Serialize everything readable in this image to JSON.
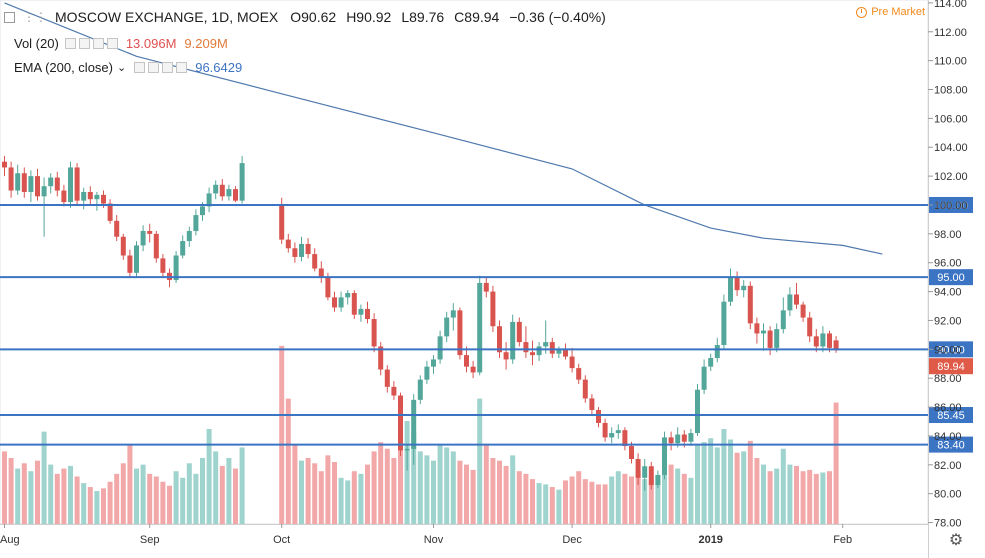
{
  "header": {
    "symbol": "MOSCOW EXCHANGE, 1D, MOEX",
    "ohlc": [
      "O90.62",
      "H90.92",
      "L89.76",
      "C89.94",
      "−0.36 (−0.40%)"
    ],
    "pre_market": "Pre Market"
  },
  "indicators": {
    "vol_label": "Vol (20)",
    "vol_value": "13.096M",
    "vol_ma_value": "9.209M",
    "ema_label": "EMA (200, close)",
    "ema_value": "96.6429"
  },
  "colors": {
    "up": "#53a69a",
    "down": "#d9534f",
    "vol_up": "#9fd3cd",
    "vol_down": "#f2a8a8",
    "level_line": "#3c74c4",
    "ema_line": "#4f79ad",
    "last_price_badge": "#e05a48"
  },
  "chart_data": {
    "type": "candlestick",
    "title": "MOSCOW EXCHANGE, 1D, MOEX",
    "ylim": [
      77.9,
      114.2
    ],
    "y_ticks": [
      78,
      80,
      82,
      84,
      86,
      88,
      90,
      92,
      94,
      96,
      98,
      100,
      102,
      104,
      106,
      108,
      110,
      112,
      114
    ],
    "y_tick_labels": [
      "78.00",
      "80.00",
      "82.00",
      "84.00",
      "86.00",
      "88.00",
      "90.00",
      "92.00",
      "94.00",
      "96.00",
      "98.00",
      "100.00",
      "102.00",
      "104.00",
      "106.00",
      "108.00",
      "110.00",
      "112.00",
      "114.00"
    ],
    "x_tick_labels": [
      {
        "label": "Aug",
        "bar": 0
      },
      {
        "label": "Sep",
        "bar": 22
      },
      {
        "label": "Oct",
        "bar": 42
      },
      {
        "label": "Nov",
        "bar": 65
      },
      {
        "label": "Dec",
        "bar": 86
      },
      {
        "label": "2019",
        "bar": 107
      },
      {
        "label": "Feb",
        "bar": 127
      }
    ],
    "horizontal_levels": [
      {
        "price": 100.0,
        "label": "100.00"
      },
      {
        "price": 95.0,
        "label": "95.00"
      },
      {
        "price": 90.0,
        "label": "90.00"
      },
      {
        "price": 85.45,
        "label": "85.45"
      },
      {
        "price": 83.4,
        "label": "83.40"
      }
    ],
    "last_price": {
      "price": 89.94,
      "label": "89.94"
    },
    "ema": [
      {
        "bar": 0,
        "value": 114.0
      },
      {
        "bar": 20,
        "value": 110.3
      },
      {
        "bar": 42,
        "value": 107.7
      },
      {
        "bar": 65,
        "value": 105.0
      },
      {
        "bar": 86,
        "value": 102.5
      },
      {
        "bar": 97,
        "value": 100.0
      },
      {
        "bar": 107,
        "value": 98.4
      },
      {
        "bar": 115,
        "value": 97.7
      },
      {
        "bar": 127,
        "value": 97.2
      },
      {
        "bar": 133,
        "value": 96.6
      }
    ],
    "candles": [
      {
        "o": 103.0,
        "h": 103.4,
        "l": 102.0,
        "c": 102.6,
        "v": 0.55
      },
      {
        "o": 102.6,
        "h": 103.0,
        "l": 100.5,
        "c": 101.0,
        "v": 0.5
      },
      {
        "o": 101.0,
        "h": 102.8,
        "l": 100.7,
        "c": 102.2,
        "v": 0.42
      },
      {
        "o": 102.2,
        "h": 102.6,
        "l": 100.5,
        "c": 100.9,
        "v": 0.46
      },
      {
        "o": 100.9,
        "h": 102.4,
        "l": 100.2,
        "c": 102.0,
        "v": 0.4
      },
      {
        "o": 102.0,
        "h": 102.5,
        "l": 100.3,
        "c": 100.6,
        "v": 0.48
      },
      {
        "o": 100.6,
        "h": 101.9,
        "l": 97.8,
        "c": 101.3,
        "v": 0.7
      },
      {
        "o": 101.3,
        "h": 102.2,
        "l": 100.8,
        "c": 101.9,
        "v": 0.45
      },
      {
        "o": 101.9,
        "h": 102.3,
        "l": 100.6,
        "c": 101.0,
        "v": 0.38
      },
      {
        "o": 101.0,
        "h": 101.4,
        "l": 99.9,
        "c": 100.2,
        "v": 0.42
      },
      {
        "o": 100.2,
        "h": 103.0,
        "l": 99.8,
        "c": 102.6,
        "v": 0.44
      },
      {
        "o": 102.6,
        "h": 102.9,
        "l": 100.0,
        "c": 100.3,
        "v": 0.36
      },
      {
        "o": 100.3,
        "h": 101.2,
        "l": 99.7,
        "c": 100.9,
        "v": 0.31
      },
      {
        "o": 100.9,
        "h": 101.3,
        "l": 100.0,
        "c": 100.4,
        "v": 0.28
      },
      {
        "o": 100.4,
        "h": 100.9,
        "l": 99.6,
        "c": 100.7,
        "v": 0.25
      },
      {
        "o": 100.7,
        "h": 101.0,
        "l": 99.8,
        "c": 100.1,
        "v": 0.27
      },
      {
        "o": 100.1,
        "h": 100.4,
        "l": 98.7,
        "c": 98.9,
        "v": 0.32
      },
      {
        "o": 98.9,
        "h": 99.3,
        "l": 97.5,
        "c": 97.8,
        "v": 0.38
      },
      {
        "o": 97.8,
        "h": 98.0,
        "l": 96.2,
        "c": 96.5,
        "v": 0.46
      },
      {
        "o": 96.5,
        "h": 96.9,
        "l": 95.0,
        "c": 95.3,
        "v": 0.6
      },
      {
        "o": 95.3,
        "h": 97.5,
        "l": 95.0,
        "c": 97.2,
        "v": 0.42
      },
      {
        "o": 97.2,
        "h": 98.6,
        "l": 96.8,
        "c": 98.2,
        "v": 0.45
      },
      {
        "o": 98.2,
        "h": 98.7,
        "l": 97.4,
        "c": 98.0,
        "v": 0.38
      },
      {
        "o": 98.0,
        "h": 98.2,
        "l": 96.0,
        "c": 96.3,
        "v": 0.36
      },
      {
        "o": 96.3,
        "h": 96.6,
        "l": 95.0,
        "c": 95.3,
        "v": 0.32
      },
      {
        "o": 95.3,
        "h": 95.6,
        "l": 94.3,
        "c": 94.8,
        "v": 0.29
      },
      {
        "o": 94.8,
        "h": 96.8,
        "l": 94.6,
        "c": 96.5,
        "v": 0.4
      },
      {
        "o": 96.5,
        "h": 97.9,
        "l": 96.3,
        "c": 97.5,
        "v": 0.35
      },
      {
        "o": 97.5,
        "h": 98.5,
        "l": 97.1,
        "c": 98.2,
        "v": 0.46
      },
      {
        "o": 98.2,
        "h": 99.7,
        "l": 97.9,
        "c": 99.3,
        "v": 0.38
      },
      {
        "o": 99.3,
        "h": 100.2,
        "l": 98.9,
        "c": 99.9,
        "v": 0.5
      },
      {
        "o": 99.9,
        "h": 101.2,
        "l": 99.5,
        "c": 100.8,
        "v": 0.72
      },
      {
        "o": 100.8,
        "h": 101.7,
        "l": 100.4,
        "c": 101.4,
        "v": 0.55
      },
      {
        "o": 101.4,
        "h": 101.8,
        "l": 100.3,
        "c": 100.6,
        "v": 0.44
      },
      {
        "o": 100.6,
        "h": 101.4,
        "l": 100.3,
        "c": 101.1,
        "v": 0.5
      },
      {
        "o": 101.1,
        "h": 101.3,
        "l": 100.2,
        "c": 100.3,
        "v": 0.42
      },
      {
        "o": 100.3,
        "h": 103.4,
        "l": 100.1,
        "c": 102.9,
        "v": 0.58
      },
      {
        "o": 100.0,
        "h": 100.5,
        "l": 97.3,
        "c": 97.6,
        "v": 1.35
      },
      {
        "o": 97.6,
        "h": 98.0,
        "l": 96.7,
        "c": 97.0,
        "v": 0.95
      },
      {
        "o": 97.0,
        "h": 97.4,
        "l": 96.0,
        "c": 96.4,
        "v": 0.6
      },
      {
        "o": 96.4,
        "h": 97.8,
        "l": 96.1,
        "c": 97.3,
        "v": 0.48
      },
      {
        "o": 97.3,
        "h": 97.7,
        "l": 96.3,
        "c": 96.6,
        "v": 0.5
      },
      {
        "o": 96.6,
        "h": 97.0,
        "l": 95.4,
        "c": 95.6,
        "v": 0.46
      },
      {
        "o": 95.6,
        "h": 96.1,
        "l": 94.6,
        "c": 95.0,
        "v": 0.4
      },
      {
        "o": 95.0,
        "h": 95.3,
        "l": 93.4,
        "c": 93.6,
        "v": 0.52
      },
      {
        "o": 93.6,
        "h": 94.0,
        "l": 92.6,
        "c": 92.9,
        "v": 0.47
      },
      {
        "o": 92.9,
        "h": 94.0,
        "l": 92.6,
        "c": 93.6,
        "v": 0.35
      },
      {
        "o": 93.6,
        "h": 94.1,
        "l": 93.1,
        "c": 93.9,
        "v": 0.33
      },
      {
        "o": 93.9,
        "h": 94.1,
        "l": 92.1,
        "c": 92.4,
        "v": 0.4
      },
      {
        "o": 92.4,
        "h": 93.1,
        "l": 91.9,
        "c": 92.8,
        "v": 0.38
      },
      {
        "o": 92.8,
        "h": 93.3,
        "l": 91.8,
        "c": 92.1,
        "v": 0.45
      },
      {
        "o": 92.1,
        "h": 92.5,
        "l": 89.8,
        "c": 90.2,
        "v": 0.55
      },
      {
        "o": 90.2,
        "h": 90.5,
        "l": 88.2,
        "c": 88.6,
        "v": 0.62
      },
      {
        "o": 88.6,
        "h": 88.9,
        "l": 87.0,
        "c": 87.4,
        "v": 0.57
      },
      {
        "o": 87.4,
        "h": 87.8,
        "l": 86.5,
        "c": 86.8,
        "v": 0.5
      },
      {
        "o": 86.8,
        "h": 87.0,
        "l": 82.6,
        "c": 83.0,
        "v": 0.95
      },
      {
        "o": 83.0,
        "h": 83.4,
        "l": 81.6,
        "c": 83.1,
        "v": 0.78
      },
      {
        "o": 83.1,
        "h": 86.9,
        "l": 82.0,
        "c": 86.5,
        "v": 0.7
      },
      {
        "o": 86.5,
        "h": 88.2,
        "l": 86.2,
        "c": 87.9,
        "v": 0.55
      },
      {
        "o": 87.9,
        "h": 89.2,
        "l": 87.6,
        "c": 88.8,
        "v": 0.52
      },
      {
        "o": 88.8,
        "h": 89.6,
        "l": 88.3,
        "c": 89.3,
        "v": 0.48
      },
      {
        "o": 89.3,
        "h": 91.3,
        "l": 89.0,
        "c": 90.9,
        "v": 0.6
      },
      {
        "o": 90.9,
        "h": 92.6,
        "l": 90.5,
        "c": 92.2,
        "v": 0.58
      },
      {
        "o": 92.2,
        "h": 93.2,
        "l": 91.3,
        "c": 92.7,
        "v": 0.55
      },
      {
        "o": 92.7,
        "h": 92.9,
        "l": 89.3,
        "c": 89.6,
        "v": 0.48
      },
      {
        "o": 89.6,
        "h": 90.2,
        "l": 88.4,
        "c": 88.8,
        "v": 0.45
      },
      {
        "o": 88.8,
        "h": 89.2,
        "l": 88.0,
        "c": 88.4,
        "v": 0.41
      },
      {
        "o": 88.4,
        "h": 95.1,
        "l": 88.2,
        "c": 94.6,
        "v": 0.95
      },
      {
        "o": 94.6,
        "h": 95.0,
        "l": 93.6,
        "c": 94.0,
        "v": 0.6
      },
      {
        "o": 94.0,
        "h": 94.4,
        "l": 91.2,
        "c": 91.6,
        "v": 0.5
      },
      {
        "o": 91.6,
        "h": 92.0,
        "l": 89.4,
        "c": 89.8,
        "v": 0.48
      },
      {
        "o": 89.8,
        "h": 90.5,
        "l": 88.6,
        "c": 89.3,
        "v": 0.44
      },
      {
        "o": 89.3,
        "h": 92.4,
        "l": 89.0,
        "c": 91.9,
        "v": 0.52
      },
      {
        "o": 91.9,
        "h": 92.2,
        "l": 90.2,
        "c": 90.5,
        "v": 0.4
      },
      {
        "o": 90.5,
        "h": 91.6,
        "l": 89.4,
        "c": 89.8,
        "v": 0.38
      },
      {
        "o": 89.8,
        "h": 90.6,
        "l": 88.9,
        "c": 89.6,
        "v": 0.34
      },
      {
        "o": 89.6,
        "h": 90.5,
        "l": 89.2,
        "c": 90.2,
        "v": 0.31
      },
      {
        "o": 90.2,
        "h": 92.0,
        "l": 89.7,
        "c": 90.5,
        "v": 0.3
      },
      {
        "o": 90.5,
        "h": 90.8,
        "l": 89.4,
        "c": 89.7,
        "v": 0.28
      },
      {
        "o": 89.7,
        "h": 90.2,
        "l": 89.4,
        "c": 90.0,
        "v": 0.26
      },
      {
        "o": 90.0,
        "h": 90.4,
        "l": 89.3,
        "c": 89.5,
        "v": 0.33
      },
      {
        "o": 89.5,
        "h": 90.1,
        "l": 88.4,
        "c": 88.7,
        "v": 0.36
      },
      {
        "o": 88.7,
        "h": 89.0,
        "l": 87.6,
        "c": 87.9,
        "v": 0.4
      },
      {
        "o": 87.9,
        "h": 88.2,
        "l": 86.3,
        "c": 86.6,
        "v": 0.34
      },
      {
        "o": 86.6,
        "h": 86.9,
        "l": 85.5,
        "c": 85.8,
        "v": 0.32
      },
      {
        "o": 85.8,
        "h": 86.0,
        "l": 84.6,
        "c": 84.9,
        "v": 0.3
      },
      {
        "o": 84.9,
        "h": 85.2,
        "l": 83.6,
        "c": 83.9,
        "v": 0.3
      },
      {
        "o": 83.9,
        "h": 84.6,
        "l": 83.5,
        "c": 84.2,
        "v": 0.36
      },
      {
        "o": 84.2,
        "h": 84.8,
        "l": 83.8,
        "c": 84.4,
        "v": 0.4
      },
      {
        "o": 84.4,
        "h": 84.6,
        "l": 83.0,
        "c": 83.3,
        "v": 0.38
      },
      {
        "o": 83.3,
        "h": 83.6,
        "l": 82.1,
        "c": 82.4,
        "v": 0.36
      },
      {
        "o": 82.4,
        "h": 82.8,
        "l": 80.6,
        "c": 81.1,
        "v": 0.4
      },
      {
        "o": 81.1,
        "h": 82.4,
        "l": 80.2,
        "c": 81.9,
        "v": 0.34
      },
      {
        "o": 81.9,
        "h": 82.2,
        "l": 80.3,
        "c": 80.6,
        "v": 0.33
      },
      {
        "o": 80.6,
        "h": 81.6,
        "l": 80.4,
        "c": 81.3,
        "v": 0.37
      },
      {
        "o": 81.3,
        "h": 84.3,
        "l": 81.0,
        "c": 83.9,
        "v": 0.52
      },
      {
        "o": 83.9,
        "h": 84.3,
        "l": 83.0,
        "c": 83.5,
        "v": 0.45
      },
      {
        "o": 83.5,
        "h": 84.6,
        "l": 83.2,
        "c": 84.1,
        "v": 0.42
      },
      {
        "o": 84.1,
        "h": 84.4,
        "l": 83.2,
        "c": 83.6,
        "v": 0.38
      },
      {
        "o": 83.6,
        "h": 84.5,
        "l": 83.3,
        "c": 84.2,
        "v": 0.35
      },
      {
        "o": 84.2,
        "h": 87.6,
        "l": 84.0,
        "c": 87.2,
        "v": 0.6
      },
      {
        "o": 87.2,
        "h": 89.3,
        "l": 86.9,
        "c": 88.8,
        "v": 0.62
      },
      {
        "o": 88.8,
        "h": 89.7,
        "l": 88.5,
        "c": 89.4,
        "v": 0.65
      },
      {
        "o": 89.4,
        "h": 90.8,
        "l": 89.1,
        "c": 90.3,
        "v": 0.58
      },
      {
        "o": 90.3,
        "h": 93.8,
        "l": 90.0,
        "c": 93.3,
        "v": 0.72
      },
      {
        "o": 93.3,
        "h": 95.6,
        "l": 93.0,
        "c": 95.0,
        "v": 0.64
      },
      {
        "o": 95.0,
        "h": 95.4,
        "l": 93.7,
        "c": 94.1,
        "v": 0.54
      },
      {
        "o": 94.1,
        "h": 94.8,
        "l": 93.6,
        "c": 94.4,
        "v": 0.55
      },
      {
        "o": 94.4,
        "h": 94.7,
        "l": 91.4,
        "c": 91.8,
        "v": 0.63
      },
      {
        "o": 91.8,
        "h": 92.2,
        "l": 90.4,
        "c": 91.1,
        "v": 0.5
      },
      {
        "o": 91.1,
        "h": 91.8,
        "l": 89.9,
        "c": 91.3,
        "v": 0.45
      },
      {
        "o": 91.3,
        "h": 91.6,
        "l": 89.6,
        "c": 90.1,
        "v": 0.4
      },
      {
        "o": 90.1,
        "h": 91.8,
        "l": 89.8,
        "c": 91.4,
        "v": 0.42
      },
      {
        "o": 91.4,
        "h": 93.6,
        "l": 91.1,
        "c": 92.7,
        "v": 0.57
      },
      {
        "o": 92.7,
        "h": 94.3,
        "l": 92.3,
        "c": 93.8,
        "v": 0.45
      },
      {
        "o": 93.8,
        "h": 94.6,
        "l": 92.8,
        "c": 93.1,
        "v": 0.44
      },
      {
        "o": 93.1,
        "h": 93.3,
        "l": 91.9,
        "c": 92.2,
        "v": 0.4
      },
      {
        "o": 92.2,
        "h": 92.6,
        "l": 90.5,
        "c": 90.9,
        "v": 0.41
      },
      {
        "o": 90.9,
        "h": 91.4,
        "l": 89.8,
        "c": 90.2,
        "v": 0.38
      },
      {
        "o": 90.2,
        "h": 91.6,
        "l": 89.8,
        "c": 91.1,
        "v": 0.39
      },
      {
        "o": 91.1,
        "h": 91.3,
        "l": 89.8,
        "c": 90.1,
        "v": 0.4
      },
      {
        "o": 90.62,
        "h": 90.92,
        "l": 89.76,
        "c": 89.94,
        "v": 0.92
      }
    ],
    "candle_x_map": [
      0,
      1,
      2,
      3,
      4,
      5,
      6,
      7,
      8,
      9,
      10,
      11,
      12,
      13,
      14,
      15,
      16,
      17,
      18,
      19,
      20,
      21,
      22,
      23,
      24,
      25,
      26,
      27,
      28,
      29,
      30,
      31,
      32,
      33,
      34,
      35,
      36,
      42,
      43,
      44,
      45,
      46,
      47,
      48,
      49,
      50,
      51,
      52,
      53,
      54,
      55,
      56,
      57,
      58,
      59,
      60,
      61,
      62,
      63,
      64,
      65,
      66,
      67,
      68,
      69,
      70,
      71,
      72,
      73,
      74,
      75,
      76,
      77,
      78,
      79,
      80,
      81,
      82,
      83,
      84,
      85,
      86,
      87,
      88,
      89,
      90,
      91,
      92,
      93,
      94,
      95,
      96,
      97,
      98,
      99,
      100,
      101,
      102,
      103,
      104,
      105,
      106,
      107,
      108,
      109,
      110,
      111,
      112,
      113,
      114,
      115,
      116,
      117,
      118,
      119,
      120,
      121,
      122,
      123,
      124,
      125,
      126,
      127,
      128,
      129,
      130,
      131,
      132,
      133
    ]
  }
}
